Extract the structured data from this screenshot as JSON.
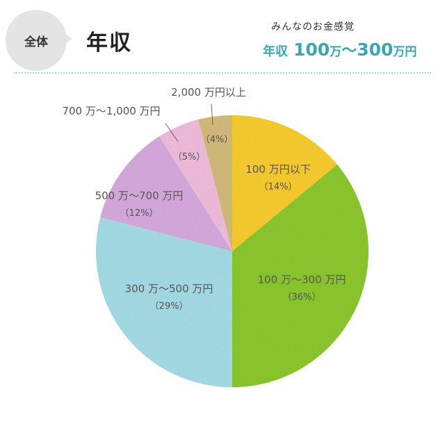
{
  "header": {
    "category": "全体",
    "title": "年収",
    "sense_label": "みんなのお金感覚",
    "sense_prefix": "年収",
    "sense_low": "100",
    "sense_unit1": "万",
    "sense_tilde": "〜",
    "sense_high": "300",
    "sense_unit2": "万円"
  },
  "colors": {
    "accent": "#3aa6b2",
    "slices": [
      "#ffd233",
      "#8fcd33",
      "#a9e2ec",
      "#dbaee3",
      "#f7c2e2",
      "#d8c07f"
    ]
  },
  "chart_data": {
    "type": "pie",
    "start": "top",
    "direction": "clockwise",
    "slices": [
      {
        "label": "100 万円以下",
        "value": 14,
        "pct_label": "（14%）"
      },
      {
        "label": "100 万〜300 万円",
        "value": 36,
        "pct_label": "（36%）"
      },
      {
        "label": "300 万〜500 万円",
        "value": 29,
        "pct_label": "（29%）"
      },
      {
        "label": "500 万〜700 万円",
        "value": 12,
        "pct_label": "（12%）"
      },
      {
        "label": "700 万〜1,000 万円",
        "value": 5,
        "pct_label": "（5%）"
      },
      {
        "label": "2,000 万円以上",
        "value": 4,
        "pct_label": "（4%）"
      }
    ]
  }
}
